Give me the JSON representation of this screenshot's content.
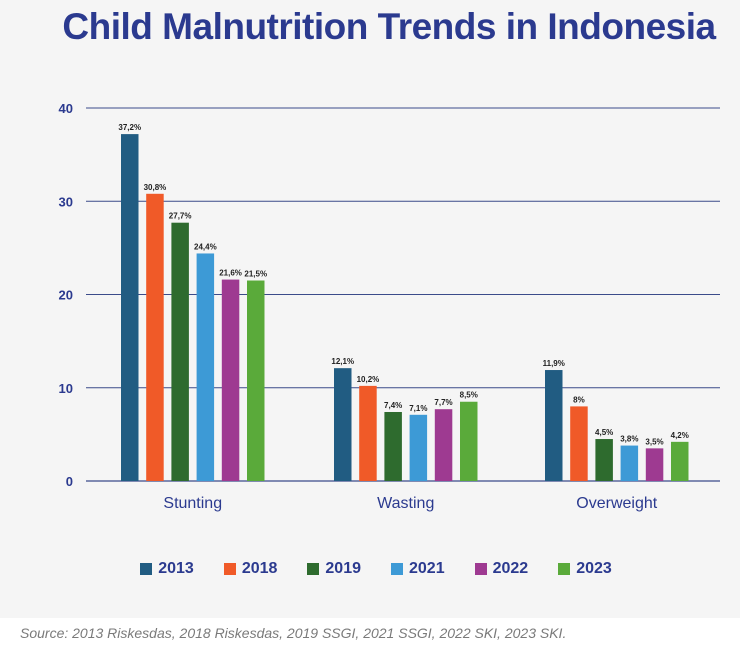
{
  "chart_data": {
    "type": "bar",
    "title": "Child Malnutrition Trends in Indonesia",
    "xlabel": "",
    "ylabel": "",
    "ylim": [
      0,
      40
    ],
    "yticks": [
      "0",
      "10",
      "20",
      "30",
      "40"
    ],
    "grid": true,
    "legend_position": "bottom",
    "categories": [
      "Stunting",
      "Wasting",
      "Overweight"
    ],
    "series": [
      {
        "name": "2013",
        "color": "#215c82",
        "values": [
          37.2,
          12.1,
          11.9
        ],
        "labels": [
          "37,2%",
          "12,1%",
          "11,9%"
        ]
      },
      {
        "name": "2018",
        "color": "#f05a28",
        "values": [
          30.8,
          10.2,
          8
        ],
        "labels": [
          "30,8%",
          "10,2%",
          "8%"
        ]
      },
      {
        "name": "2019",
        "color": "#2e6b2e",
        "values": [
          27.7,
          7.4,
          4.5
        ],
        "labels": [
          "27,7%",
          "7,4%",
          "4,5%"
        ]
      },
      {
        "name": "2021",
        "color": "#3d9ad6",
        "values": [
          24.4,
          7.1,
          3.8
        ],
        "labels": [
          "24,4%",
          "7,1%",
          "3,8%"
        ]
      },
      {
        "name": "2022",
        "color": "#9e3a91",
        "values": [
          21.6,
          7.7,
          3.5
        ],
        "labels": [
          "21,6%",
          "7,7%",
          "3,5%"
        ]
      },
      {
        "name": "2023",
        "color": "#5aaa3a",
        "values": [
          21.5,
          8.5,
          4.2
        ],
        "labels": [
          "21,5%",
          "8,5%",
          "4,2%"
        ]
      }
    ],
    "source": "Source: 2013 Riskesdas, 2018 Riskesdas, 2019 SSGI, 2021 SSGI, 2022 SKI, 2023 SKI."
  },
  "colors": {
    "title": "#2b3a8f",
    "gridline": "#3b4b8a",
    "panel": "#f5f5f5"
  }
}
